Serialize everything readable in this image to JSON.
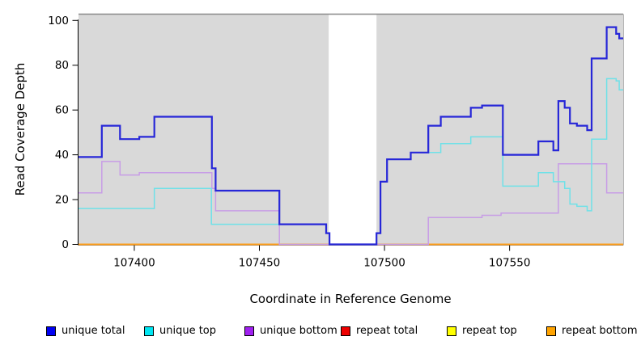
{
  "chart_data": {
    "type": "step-line",
    "title": "",
    "xlabel": "Coordinate in Reference Genome",
    "ylabel": "Read Coverage Depth",
    "xlim": [
      107377.7,
      107595.4
    ],
    "ylim": [
      0,
      103
    ],
    "x_ticks": [
      107400,
      107450,
      107500,
      107550
    ],
    "y_ticks": [
      0,
      20,
      40,
      60,
      80,
      100
    ],
    "grid": false,
    "panel_color": "#d9d9d9",
    "panel_border_color": "#8a8a8a",
    "gap_region": {
      "x_start": 107477.7,
      "x_end": 107496.8,
      "color": "#ffffff"
    },
    "series": [
      {
        "name": "repeat total",
        "color": "#e80000",
        "width": 1.5,
        "points": [
          [
            107377.7,
            0
          ]
        ]
      },
      {
        "name": "repeat top",
        "color": "#ffff00",
        "width": 1.5,
        "points": [
          [
            107377.7,
            0
          ]
        ]
      },
      {
        "name": "repeat bottom",
        "color": "#ff9e1b",
        "width": 2,
        "points": [
          [
            107377.7,
            0
          ]
        ]
      },
      {
        "name": "unique bottom",
        "color": "#c89de6",
        "width": 1.5,
        "points": [
          [
            107377.7,
            23
          ],
          [
            107387,
            37
          ],
          [
            107394.3,
            31
          ],
          [
            107402,
            32
          ],
          [
            107431,
            25
          ],
          [
            107432.5,
            15
          ],
          [
            107458,
            0
          ],
          [
            107517.5,
            12
          ],
          [
            107539,
            13
          ],
          [
            107546.6,
            14
          ],
          [
            107569.5,
            36
          ],
          [
            107588.8,
            23
          ]
        ]
      },
      {
        "name": "unique top",
        "color": "#6fe1e8",
        "width": 1.5,
        "points": [
          [
            107377.7,
            16
          ],
          [
            107408,
            25
          ],
          [
            107430.8,
            9
          ],
          [
            107476.7,
            5
          ],
          [
            107478,
            0
          ],
          [
            107496.8,
            5
          ],
          [
            107498.4,
            28
          ],
          [
            107501,
            38
          ],
          [
            107510.5,
            41
          ],
          [
            107522.5,
            45
          ],
          [
            107534.5,
            48
          ],
          [
            107547.3,
            26
          ],
          [
            107561.5,
            32
          ],
          [
            107567.5,
            28
          ],
          [
            107572,
            25
          ],
          [
            107574.1,
            18
          ],
          [
            107576.9,
            17
          ],
          [
            107581,
            15
          ],
          [
            107582.8,
            47
          ],
          [
            107588.8,
            74
          ],
          [
            107592.6,
            73
          ],
          [
            107593.8,
            69
          ]
        ]
      },
      {
        "name": "unique total",
        "color": "#2727d8",
        "width": 2.2,
        "points": [
          [
            107377.7,
            39
          ],
          [
            107387,
            53
          ],
          [
            107394.3,
            47
          ],
          [
            107402,
            48
          ],
          [
            107408,
            57
          ],
          [
            107431,
            34
          ],
          [
            107432.5,
            24
          ],
          [
            107458,
            9
          ],
          [
            107476.7,
            5
          ],
          [
            107478,
            0
          ],
          [
            107496.8,
            5
          ],
          [
            107498.4,
            28
          ],
          [
            107501,
            38
          ],
          [
            107510.5,
            41
          ],
          [
            107517.5,
            53
          ],
          [
            107522.5,
            57
          ],
          [
            107534.5,
            61
          ],
          [
            107539,
            62
          ],
          [
            107547.3,
            40
          ],
          [
            107561.5,
            46
          ],
          [
            107567.5,
            42
          ],
          [
            107569.5,
            64
          ],
          [
            107572,
            61
          ],
          [
            107574.1,
            54
          ],
          [
            107576.9,
            53
          ],
          [
            107581,
            51
          ],
          [
            107582.8,
            83
          ],
          [
            107588.8,
            97
          ],
          [
            107592.6,
            94
          ],
          [
            107593.8,
            92
          ]
        ]
      }
    ],
    "legend": [
      {
        "label": "unique total",
        "swatch": "#0000f2"
      },
      {
        "label": "unique top",
        "swatch": "#00e6f2"
      },
      {
        "label": "unique bottom",
        "swatch": "#a020f0"
      },
      {
        "label": "repeat total",
        "swatch": "#ee0000"
      },
      {
        "label": "repeat top",
        "swatch": "#ffff00"
      },
      {
        "label": "repeat bottom",
        "swatch": "#ffa300"
      }
    ],
    "legend_position": "bottom"
  }
}
